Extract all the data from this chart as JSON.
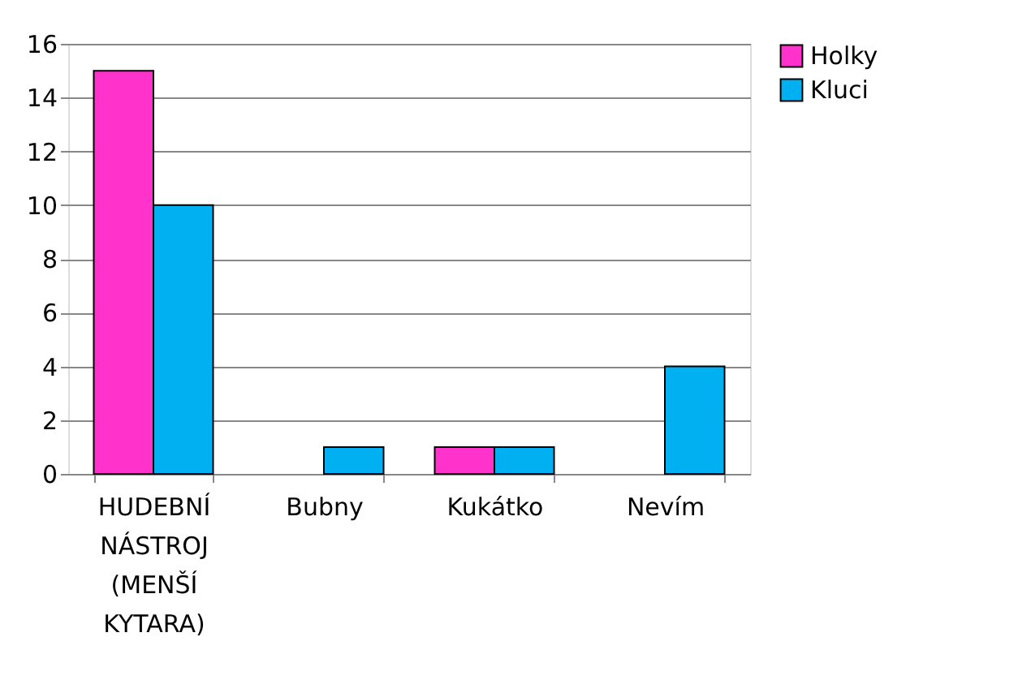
{
  "chart_data": {
    "type": "bar",
    "categories": [
      "HUDEBNÍ NÁSTROJ (MENŠÍ KYTARA)",
      "Bubny",
      "Kukátko",
      "Nevím"
    ],
    "series": [
      {
        "name": "Holky",
        "color": "#ff33cc",
        "values": [
          15,
          null,
          1,
          null
        ]
      },
      {
        "name": "Kluci",
        "color": "#00b0f0",
        "values": [
          10,
          1,
          1,
          4
        ]
      }
    ],
    "ylim": [
      0,
      16
    ],
    "yticks": [
      0,
      2,
      4,
      6,
      8,
      10,
      12,
      14,
      16
    ],
    "grid": "y",
    "legend": "right"
  }
}
